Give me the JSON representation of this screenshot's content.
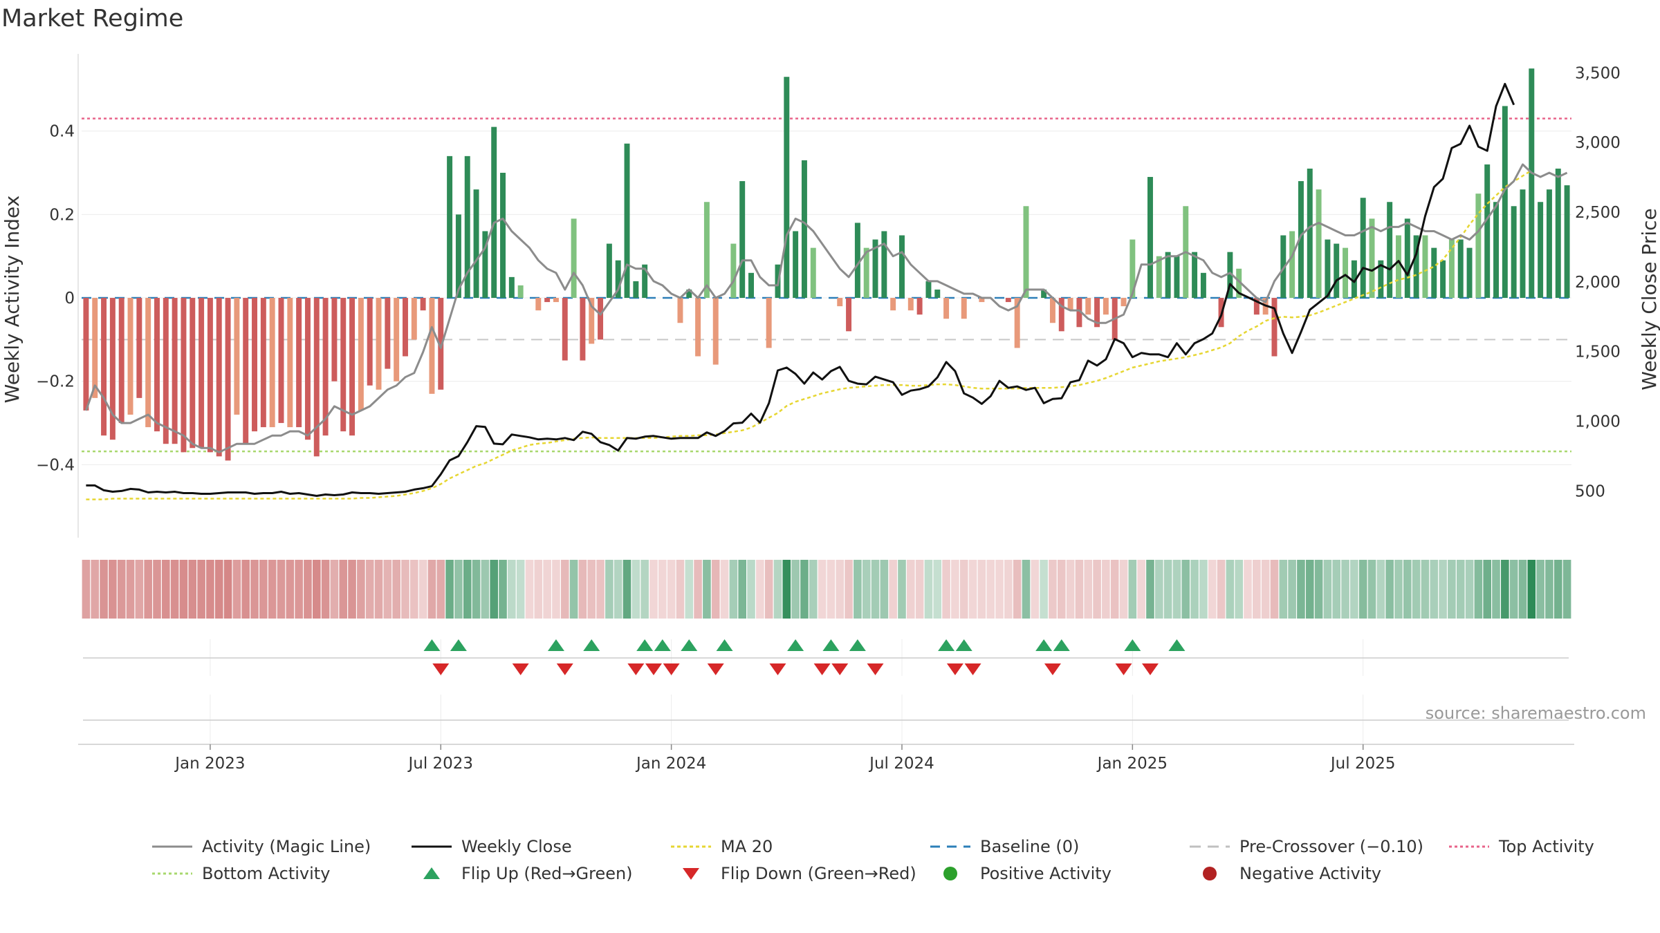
{
  "chart_data": {
    "type": "bar",
    "title": "Market Regime",
    "ylabel_left": "Weekly Activity Index",
    "ylabel_right": "Weekly Close Price",
    "source": "source: sharemaestro.com",
    "ylim_left": [
      -0.57,
      0.59
    ],
    "ylim_right": [
      180,
      3650
    ],
    "yticks_left": [
      {
        "v": 0.4,
        "label": "0.4"
      },
      {
        "v": 0.2,
        "label": "0.2"
      },
      {
        "v": 0,
        "label": "0"
      },
      {
        "v": -0.2,
        "label": "−0.2"
      },
      {
        "v": -0.4,
        "label": "−0.4"
      }
    ],
    "yticks_right": [
      {
        "v": 3500,
        "label": "3,500"
      },
      {
        "v": 3000,
        "label": "3,000"
      },
      {
        "v": 2500,
        "label": "2,500"
      },
      {
        "v": 2000,
        "label": "2,000"
      },
      {
        "v": 1500,
        "label": "1,500"
      },
      {
        "v": 1000,
        "label": "1,000"
      },
      {
        "v": 500,
        "label": "500"
      }
    ],
    "x_start_week_label": "late Sep 2022",
    "xticks": [
      {
        "week": 14,
        "label": "Jan 2023"
      },
      {
        "week": 40,
        "label": "Jul 2023"
      },
      {
        "week": 66,
        "label": "Jan 2024"
      },
      {
        "week": 92,
        "label": "Jul 2024"
      },
      {
        "week": 118,
        "label": "Jan 2025"
      },
      {
        "week": 144,
        "label": "Jul 2025"
      }
    ],
    "grid": true,
    "reference_lines": {
      "baseline": 0,
      "pre_crossover": -0.1,
      "top_activity": 0.43,
      "bottom_activity": -0.368
    },
    "activity_values": [
      -0.27,
      -0.24,
      -0.33,
      -0.34,
      -0.3,
      -0.28,
      -0.24,
      -0.31,
      -0.32,
      -0.35,
      -0.35,
      -0.37,
      -0.36,
      -0.36,
      -0.37,
      -0.38,
      -0.39,
      -0.28,
      -0.35,
      -0.32,
      -0.31,
      -0.31,
      -0.3,
      -0.31,
      -0.31,
      -0.34,
      -0.38,
      -0.33,
      -0.2,
      -0.32,
      -0.33,
      -0.27,
      -0.21,
      -0.22,
      -0.17,
      -0.2,
      -0.14,
      -0.1,
      -0.03,
      -0.23,
      -0.22,
      0.34,
      0.2,
      0.34,
      0.26,
      0.16,
      0.41,
      0.3,
      0.05,
      0.03,
      0,
      -0.03,
      -0.01,
      -0.01,
      -0.15,
      0.19,
      -0.15,
      -0.11,
      -0.1,
      0.13,
      0.09,
      0.37,
      0.04,
      0.08,
      0,
      0,
      0,
      -0.06,
      0.02,
      -0.14,
      0.23,
      -0.16,
      0,
      0.13,
      0.28,
      0.06,
      0,
      -0.12,
      0.08,
      0.53,
      0.16,
      0.33,
      0.12,
      0,
      0,
      -0.02,
      -0.08,
      0.18,
      0.12,
      0.14,
      0.16,
      -0.03,
      0.15,
      -0.03,
      -0.04,
      0.04,
      0.02,
      -0.05,
      0,
      -0.05,
      0,
      -0.01,
      0,
      0,
      -0.01,
      -0.12,
      0.22,
      0,
      0.02,
      -0.06,
      -0.08,
      -0.03,
      -0.07,
      -0.04,
      -0.07,
      -0.04,
      -0.1,
      -0.02,
      0.14,
      0,
      0.29,
      0.1,
      0.11,
      0.1,
      0.22,
      0.11,
      0.06,
      0,
      -0.07,
      0.11,
      0.07,
      0,
      -0.04,
      -0.04,
      -0.14,
      0.15,
      0.16,
      0.28,
      0.31,
      0.26,
      0.14,
      0.13,
      0.12,
      0.09,
      0.24,
      0.19,
      0.09,
      0.23,
      0.15,
      0.19,
      0.15,
      0.15,
      0.12,
      0.09,
      0.14,
      0.14,
      0.12,
      0.25,
      0.32,
      0.23,
      0.46,
      0.22,
      0.26,
      0.55,
      0.23,
      0.26,
      0.31,
      0.27
    ],
    "magic_line": [
      -0.27,
      -0.21,
      -0.24,
      -0.28,
      -0.3,
      -0.3,
      -0.29,
      -0.28,
      -0.3,
      -0.31,
      -0.32,
      -0.33,
      -0.35,
      -0.36,
      -0.36,
      -0.37,
      -0.36,
      -0.35,
      -0.35,
      -0.35,
      -0.34,
      -0.33,
      -0.33,
      -0.32,
      -0.32,
      -0.33,
      -0.31,
      -0.29,
      -0.26,
      -0.27,
      -0.28,
      -0.27,
      -0.26,
      -0.24,
      -0.22,
      -0.21,
      -0.19,
      -0.18,
      -0.13,
      -0.07,
      -0.12,
      -0.05,
      0.02,
      0.06,
      0.09,
      0.12,
      0.18,
      0.19,
      0.16,
      0.14,
      0.12,
      0.09,
      0.07,
      0.06,
      0.02,
      0.06,
      0.03,
      -0.02,
      -0.04,
      -0.01,
      0.02,
      0.08,
      0.07,
      0.07,
      0.04,
      0.03,
      0.01,
      0.0,
      0.02,
      0.0,
      0.03,
      0.0,
      0.01,
      0.04,
      0.09,
      0.09,
      0.05,
      0.03,
      0.03,
      0.15,
      0.19,
      0.18,
      0.16,
      0.13,
      0.1,
      0.07,
      0.05,
      0.08,
      0.11,
      0.12,
      0.13,
      0.1,
      0.11,
      0.08,
      0.06,
      0.04,
      0.04,
      0.03,
      0.02,
      0.01,
      0.01,
      0.0,
      0.0,
      -0.02,
      -0.03,
      -0.02,
      0.02,
      0.02,
      0.02,
      0.0,
      -0.02,
      -0.03,
      -0.03,
      -0.05,
      -0.06,
      -0.06,
      -0.05,
      -0.04,
      0.01,
      0.08,
      0.08,
      0.09,
      0.1,
      0.1,
      0.11,
      0.1,
      0.09,
      0.06,
      0.05,
      0.06,
      0.04,
      0.02,
      0.0,
      -0.01,
      0.04,
      0.07,
      0.1,
      0.15,
      0.17,
      0.18,
      0.17,
      0.16,
      0.15,
      0.15,
      0.16,
      0.17,
      0.16,
      0.17,
      0.17,
      0.18,
      0.17,
      0.16,
      0.16,
      0.15,
      0.14,
      0.15,
      0.14,
      0.16,
      0.19,
      0.22,
      0.26,
      0.28,
      0.32,
      0.3,
      0.29,
      0.3,
      0.29,
      0.3
    ],
    "weekly_close": [
      540,
      540,
      505,
      495,
      500,
      515,
      510,
      490,
      495,
      490,
      495,
      485,
      485,
      480,
      480,
      485,
      490,
      490,
      490,
      480,
      485,
      485,
      495,
      480,
      485,
      475,
      465,
      475,
      470,
      475,
      490,
      485,
      485,
      480,
      485,
      490,
      495,
      510,
      520,
      535,
      620,
      720,
      750,
      850,
      965,
      960,
      840,
      835,
      905,
      895,
      885,
      870,
      875,
      870,
      880,
      865,
      925,
      910,
      850,
      830,
      790,
      880,
      875,
      890,
      895,
      885,
      875,
      880,
      880,
      880,
      920,
      895,
      930,
      985,
      990,
      1055,
      990,
      1130,
      1365,
      1385,
      1340,
      1270,
      1350,
      1300,
      1360,
      1390,
      1290,
      1270,
      1265,
      1320,
      1300,
      1280,
      1190,
      1220,
      1230,
      1250,
      1315,
      1425,
      1360,
      1200,
      1170,
      1125,
      1180,
      1290,
      1240,
      1250,
      1225,
      1240,
      1130,
      1160,
      1165,
      1280,
      1295,
      1435,
      1400,
      1445,
      1590,
      1560,
      1460,
      1490,
      1480,
      1480,
      1460,
      1560,
      1480,
      1560,
      1590,
      1630,
      1760,
      1985,
      1920,
      1890,
      1860,
      1830,
      1810,
      1630,
      1490,
      1640,
      1800,
      1850,
      1900,
      2010,
      2050,
      2000,
      2100,
      2080,
      2120,
      2090,
      2150,
      2050,
      2200,
      2470,
      2680,
      2740,
      2960,
      2990,
      3120,
      2970,
      2940,
      3260,
      3420,
      3270
    ],
    "ma20": [
      440,
      440,
      440,
      445,
      445,
      445,
      445,
      445,
      445,
      445,
      445,
      445,
      445,
      445,
      445,
      445,
      445,
      445,
      445,
      445,
      445,
      445,
      445,
      445,
      445,
      445,
      445,
      445,
      445,
      445,
      445,
      450,
      450,
      455,
      460,
      465,
      475,
      485,
      500,
      520,
      550,
      590,
      620,
      650,
      680,
      700,
      730,
      760,
      790,
      810,
      830,
      840,
      845,
      855,
      865,
      875,
      880,
      885,
      880,
      880,
      880,
      880,
      880,
      880,
      880,
      885,
      890,
      895,
      895,
      900,
      900,
      905,
      915,
      925,
      935,
      955,
      990,
      1025,
      1060,
      1110,
      1140,
      1160,
      1180,
      1200,
      1215,
      1230,
      1240,
      1245,
      1250,
      1255,
      1260,
      1260,
      1260,
      1255,
      1255,
      1260,
      1265,
      1265,
      1260,
      1250,
      1240,
      1235,
      1235,
      1235,
      1235,
      1235,
      1240,
      1240,
      1240,
      1240,
      1245,
      1250,
      1260,
      1275,
      1290,
      1310,
      1335,
      1360,
      1385,
      1400,
      1415,
      1430,
      1440,
      1450,
      1460,
      1475,
      1490,
      1510,
      1530,
      1560,
      1610,
      1650,
      1680,
      1720,
      1740,
      1750,
      1745,
      1750,
      1760,
      1780,
      1805,
      1830,
      1855,
      1880,
      1905,
      1930,
      1960,
      1990,
      2015,
      2030,
      2050,
      2080,
      2110,
      2160,
      2240,
      2320,
      2410,
      2490,
      2560,
      2620,
      2680,
      2720,
      2760,
      2800
    ],
    "flip_up_weeks": [
      39,
      42,
      53,
      57,
      63,
      65,
      68,
      72,
      80,
      84,
      87,
      97,
      99,
      108,
      110,
      118,
      123
    ],
    "flip_down_weeks": [
      40,
      49,
      54,
      62,
      64,
      66,
      71,
      78,
      83,
      85,
      89,
      98,
      100,
      109,
      117,
      120
    ],
    "regime_strip": "activity-colored weekly regime strip",
    "legend": [
      {
        "key": "magic",
        "label": "Activity (Magic Line)",
        "color": "#8c8c8c"
      },
      {
        "key": "close",
        "label": "Weekly Close",
        "color": "#111111"
      },
      {
        "key": "ma20",
        "label": "MA 20",
        "color": "#e6d632"
      },
      {
        "key": "baseline",
        "label": "Baseline (0)",
        "color": "#2c7fb8"
      },
      {
        "key": "precross",
        "label": "Pre-Crossover (−0.10)",
        "color": "#c0c0c0"
      },
      {
        "key": "top",
        "label": "Top Activity",
        "color": "#e8638a"
      },
      {
        "key": "bottom",
        "label": "Bottom Activity",
        "color": "#a8d86e"
      },
      {
        "key": "flipup",
        "label": "Flip Up (Red→Green)",
        "color": "#2ca25f"
      },
      {
        "key": "flipdown",
        "label": "Flip Down (Green→Red)",
        "color": "#d62728"
      },
      {
        "key": "pos",
        "label": "Positive Activity",
        "color": "#2ca02c"
      },
      {
        "key": "neg",
        "label": "Negative Activity",
        "color": "#b22222"
      }
    ]
  }
}
